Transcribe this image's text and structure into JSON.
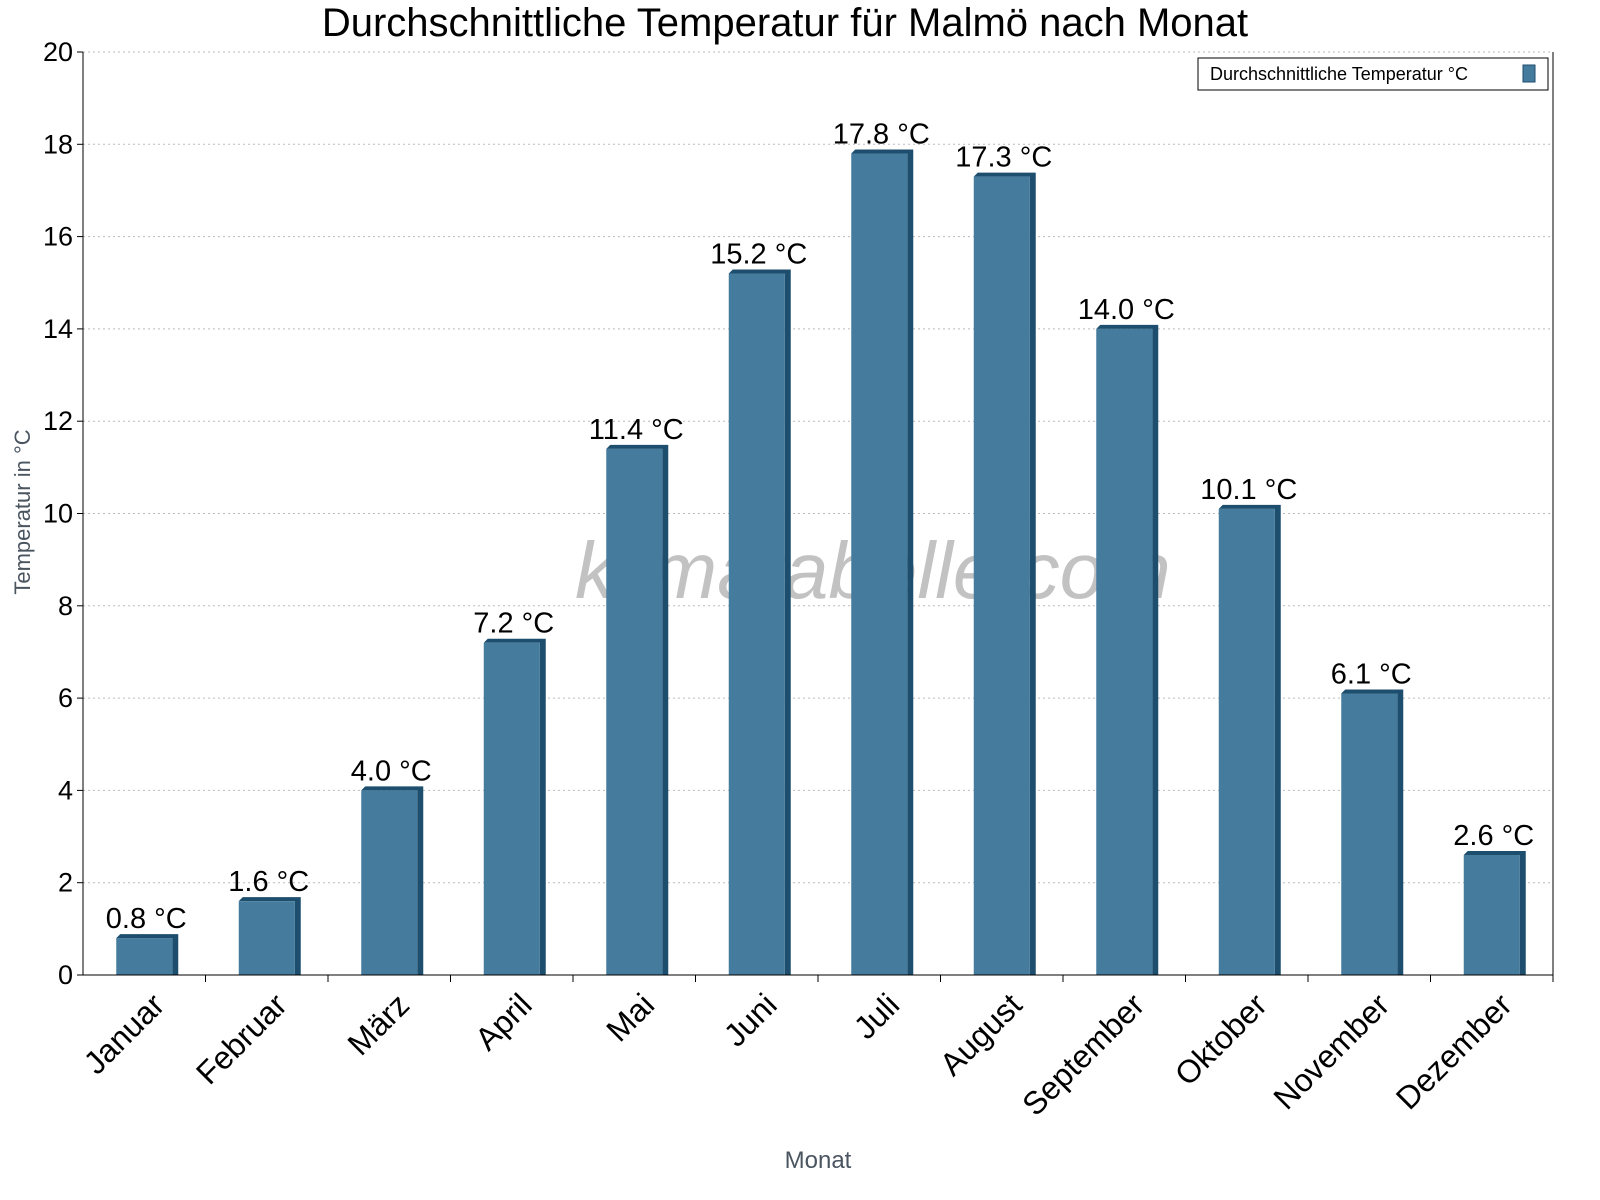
{
  "chart_data": {
    "type": "bar",
    "title": "Durchschnittliche Temperatur für Malmö nach Monat",
    "xlabel": "Monat",
    "ylabel": "Temperatur in °C",
    "ylim": [
      0,
      20
    ],
    "yticks": [
      0,
      2,
      4,
      6,
      8,
      10,
      12,
      14,
      16,
      18,
      20
    ],
    "grid": true,
    "legend_position": "top-right",
    "categories": [
      "Januar",
      "Februar",
      "März",
      "April",
      "Mai",
      "Juni",
      "Juli",
      "August",
      "September",
      "Oktober",
      "November",
      "Dezember"
    ],
    "series": [
      {
        "name": "Durchschnittliche Temperatur °C",
        "values": [
          0.8,
          1.6,
          4.0,
          7.2,
          11.4,
          15.2,
          17.8,
          17.3,
          14.0,
          10.1,
          6.1,
          2.6
        ],
        "labels": [
          "0.8 °C",
          "1.6 °C",
          "4.0 °C",
          "7.2 °C",
          "11.4 °C",
          "15.2 °C",
          "17.8 °C",
          "17.3 °C",
          "14.0 °C",
          "10.1 °C",
          "6.1 °C",
          "2.6 °C"
        ],
        "color": "#457b9d",
        "shade_color": "#1d4e6e"
      }
    ],
    "watermark": "klimatabelle.com"
  }
}
